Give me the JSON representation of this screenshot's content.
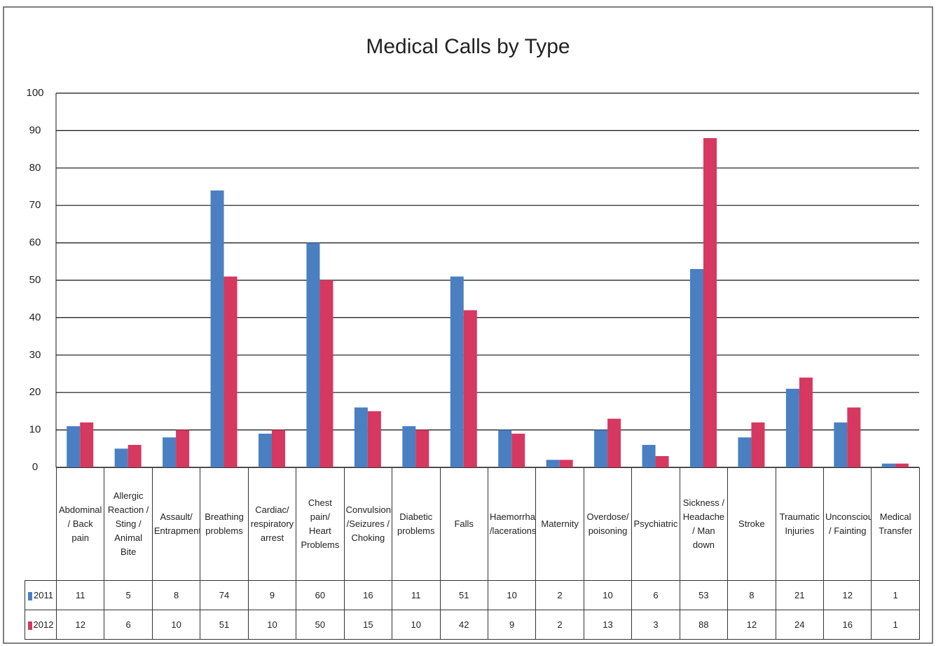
{
  "chart_data": {
    "type": "bar",
    "title": "Medical Calls by Type",
    "categories": [
      "Abdominal / Back pain",
      "Allergic Reaction / Sting / Animal Bite",
      "Assault/ Entrapment",
      "Breathing problems",
      "Cardiac/ respiratory arrest",
      "Chest pain/ Heart Problems",
      "Convulsions /Seizures / Choking",
      "Diabetic problems",
      "Falls",
      "Haemorrhage /lacerations",
      "Maternity",
      "Overdose/ poisoning",
      "Psychiatric",
      "Sickness / Headache / Man down",
      "Stroke",
      "Traumatic Injuries",
      "Unconscious / Fainting",
      "Medical Transfer"
    ],
    "series": [
      {
        "name": "2011",
        "color": "#4a7fc1",
        "values": [
          11,
          5,
          8,
          74,
          9,
          60,
          16,
          11,
          51,
          10,
          2,
          10,
          6,
          53,
          8,
          21,
          12,
          1
        ]
      },
      {
        "name": "2012",
        "color": "#d6385f",
        "values": [
          12,
          6,
          10,
          51,
          10,
          50,
          15,
          10,
          42,
          9,
          2,
          13,
          3,
          88,
          12,
          24,
          16,
          1
        ]
      }
    ],
    "ylim": [
      0,
      100
    ],
    "yticks": [
      0,
      10,
      20,
      30,
      40,
      50,
      60,
      70,
      80,
      90,
      100
    ],
    "grid": true
  }
}
